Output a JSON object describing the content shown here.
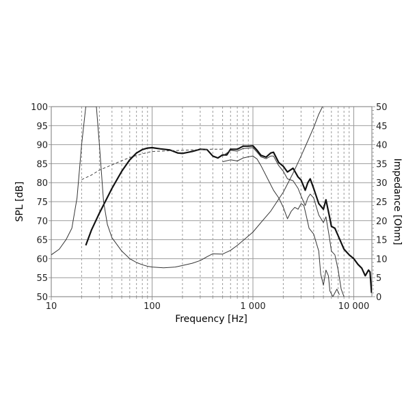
{
  "chart_data": {
    "type": "line",
    "title": "",
    "xlabel": "Frequency [Hz]",
    "ylabel": "SPL [dB]",
    "y2label": "Impedance [Ohm]",
    "xscale": "log",
    "xlim": [
      10,
      15000
    ],
    "ylim": [
      50,
      100
    ],
    "y2lim": [
      0,
      50
    ],
    "grid": true,
    "legend": "none",
    "x_ticks": [
      {
        "value": 10,
        "label": "10"
      },
      {
        "value": 100,
        "label": "100"
      },
      {
        "value": 1000,
        "label": "1 000"
      },
      {
        "value": 10000,
        "label": "10 000"
      }
    ],
    "y_ticks": [
      "100",
      "95",
      "90",
      "85",
      "80",
      "75",
      "70",
      "65",
      "60",
      "55",
      "50"
    ],
    "y2_ticks": [
      "50",
      "45",
      "40",
      "35",
      "30",
      "25",
      "20",
      "15",
      "10",
      "5",
      "0"
    ],
    "series": [
      {
        "name": "SPL on-axis",
        "axis": "left",
        "style": "thick",
        "points": [
          [
            22,
            63.5
          ],
          [
            25,
            67.5
          ],
          [
            30,
            72
          ],
          [
            35,
            75.5
          ],
          [
            40,
            78.5
          ],
          [
            50,
            83
          ],
          [
            60,
            86
          ],
          [
            70,
            87.8
          ],
          [
            80,
            88.7
          ],
          [
            90,
            89.1
          ],
          [
            100,
            89.2
          ],
          [
            120,
            88.9
          ],
          [
            150,
            88.6
          ],
          [
            180,
            87.8
          ],
          [
            200,
            87.7
          ],
          [
            250,
            88.2
          ],
          [
            300,
            88.8
          ],
          [
            350,
            88.7
          ],
          [
            400,
            87
          ],
          [
            450,
            86.5
          ],
          [
            500,
            87.3
          ],
          [
            550,
            87.3
          ],
          [
            600,
            88.8
          ],
          [
            700,
            88.8
          ],
          [
            800,
            89.6
          ],
          [
            900,
            89.6
          ],
          [
            1000,
            89.7
          ],
          [
            1100,
            88.5
          ],
          [
            1200,
            87.2
          ],
          [
            1350,
            86.7
          ],
          [
            1500,
            87.8
          ],
          [
            1600,
            88
          ],
          [
            1800,
            85.3
          ],
          [
            2000,
            84.3
          ],
          [
            2200,
            82.8
          ],
          [
            2500,
            83.8
          ],
          [
            2800,
            81.5
          ],
          [
            3000,
            80.7
          ],
          [
            3300,
            78
          ],
          [
            3500,
            80
          ],
          [
            3700,
            81
          ],
          [
            4000,
            78.5
          ],
          [
            4500,
            74.5
          ],
          [
            5000,
            73
          ],
          [
            5300,
            75.5
          ],
          [
            5700,
            71.5
          ],
          [
            6000,
            68.5
          ],
          [
            6500,
            68
          ],
          [
            7000,
            66
          ],
          [
            8000,
            62.5
          ],
          [
            9000,
            61
          ],
          [
            10000,
            60
          ],
          [
            11000,
            58.5
          ],
          [
            12000,
            57.5
          ],
          [
            13000,
            55.5
          ],
          [
            14000,
            57
          ],
          [
            14500,
            56.5
          ],
          [
            15000,
            51
          ]
        ]
      },
      {
        "name": "SPL 30 deg",
        "axis": "left",
        "style": "thin",
        "points": [
          [
            500,
            87
          ],
          [
            600,
            88.5
          ],
          [
            700,
            88.3
          ],
          [
            800,
            89
          ],
          [
            900,
            89.1
          ],
          [
            1000,
            89.2
          ],
          [
            1100,
            88
          ],
          [
            1200,
            86.8
          ],
          [
            1350,
            86.3
          ],
          [
            1500,
            87
          ],
          [
            1600,
            87
          ],
          [
            1800,
            84.5
          ],
          [
            2000,
            83
          ],
          [
            2200,
            81
          ],
          [
            2500,
            80.5
          ],
          [
            2800,
            78.5
          ],
          [
            3000,
            76.5
          ],
          [
            3300,
            74
          ],
          [
            3500,
            76
          ],
          [
            3700,
            77
          ],
          [
            4000,
            76
          ],
          [
            4500,
            71.5
          ],
          [
            5000,
            69.5
          ],
          [
            5300,
            71
          ],
          [
            5700,
            66
          ],
          [
            6000,
            62
          ],
          [
            6500,
            61
          ],
          [
            7000,
            57
          ],
          [
            7500,
            52
          ],
          [
            8000,
            50
          ]
        ]
      },
      {
        "name": "SPL 60 deg",
        "axis": "left",
        "style": "thin",
        "points": [
          [
            500,
            85.5
          ],
          [
            600,
            86
          ],
          [
            700,
            85.7
          ],
          [
            800,
            86.5
          ],
          [
            900,
            86.8
          ],
          [
            1000,
            87
          ],
          [
            1100,
            86.2
          ],
          [
            1200,
            84.5
          ],
          [
            1400,
            81
          ],
          [
            1600,
            78
          ],
          [
            1800,
            76
          ],
          [
            2000,
            73.5
          ],
          [
            2200,
            70.5
          ],
          [
            2400,
            72.5
          ],
          [
            2600,
            73.5
          ],
          [
            2800,
            73
          ],
          [
            3000,
            74.5
          ],
          [
            3200,
            74
          ],
          [
            3400,
            71
          ],
          [
            3600,
            68
          ],
          [
            4000,
            66.5
          ],
          [
            4500,
            62
          ],
          [
            4700,
            56
          ],
          [
            5000,
            53
          ],
          [
            5300,
            57
          ],
          [
            5600,
            55.5
          ],
          [
            5800,
            51.5
          ],
          [
            6200,
            50
          ],
          [
            6800,
            52
          ],
          [
            7200,
            50.5
          ]
        ]
      },
      {
        "name": "SPL power response (dashed)",
        "axis": "left",
        "style": "dashed",
        "points": [
          [
            20,
            80.8
          ],
          [
            25,
            82
          ],
          [
            30,
            83.3
          ],
          [
            40,
            84.7
          ],
          [
            50,
            85.8
          ],
          [
            60,
            86.6
          ],
          [
            80,
            87.6
          ],
          [
            100,
            88.2
          ],
          [
            150,
            88.4
          ],
          [
            200,
            88.5
          ],
          [
            300,
            88.7
          ],
          [
            400,
            88.8
          ],
          [
            500,
            88.8
          ]
        ]
      },
      {
        "name": "Impedance",
        "axis": "right",
        "style": "thin",
        "points": [
          [
            10,
            11
          ],
          [
            12,
            12.5
          ],
          [
            14,
            15
          ],
          [
            16,
            18
          ],
          [
            18,
            26
          ],
          [
            20,
            40
          ],
          [
            22,
            50
          ],
          [
            28,
            50
          ],
          [
            30,
            40
          ],
          [
            33,
            25
          ],
          [
            36,
            19
          ],
          [
            40,
            15.5
          ],
          [
            50,
            12
          ],
          [
            60,
            10
          ],
          [
            70,
            9
          ],
          [
            80,
            8.4
          ],
          [
            90,
            8
          ],
          [
            100,
            7.8
          ],
          [
            130,
            7.6
          ],
          [
            170,
            7.8
          ],
          [
            200,
            8.2
          ],
          [
            250,
            8.8
          ],
          [
            300,
            9.5
          ],
          [
            350,
            10.5
          ],
          [
            400,
            11.3
          ],
          [
            500,
            11.2
          ],
          [
            600,
            12.2
          ],
          [
            700,
            13.5
          ],
          [
            800,
            14.8
          ],
          [
            1000,
            17
          ],
          [
            1200,
            19.5
          ],
          [
            1500,
            22.5
          ],
          [
            2000,
            27.5
          ],
          [
            2500,
            32.5
          ],
          [
            3000,
            37
          ],
          [
            3500,
            41
          ],
          [
            4000,
            44.5
          ],
          [
            4500,
            48
          ],
          [
            4900,
            50
          ]
        ]
      }
    ]
  }
}
